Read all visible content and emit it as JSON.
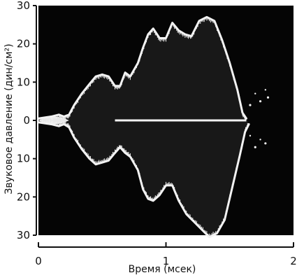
{
  "chart_data": {
    "type": "area",
    "title": "",
    "xlabel": "Время (мсек)",
    "ylabel": "Звуковое давление (дин/см²)",
    "xlim": [
      0,
      2
    ],
    "ylim": [
      -30,
      30
    ],
    "x_ticks": [
      "0",
      "1",
      "2"
    ],
    "y_ticks": [
      "30",
      "20",
      "10",
      "0",
      "10",
      "20",
      "30"
    ],
    "grid": false,
    "background_color": "#050505",
    "trace_color": "#f2f2f2",
    "series": [
      {
        "name": "",
        "upper": [
          [
            0.0,
            0.5
          ],
          [
            0.1,
            1.0
          ],
          [
            0.16,
            1.5
          ],
          [
            0.2,
            1.0
          ],
          [
            0.24,
            1.5
          ],
          [
            0.28,
            4.0
          ],
          [
            0.34,
            7.0
          ],
          [
            0.4,
            9.5
          ],
          [
            0.45,
            11.5
          ],
          [
            0.5,
            12.0
          ],
          [
            0.55,
            11.5
          ],
          [
            0.6,
            9.0
          ],
          [
            0.64,
            9.0
          ],
          [
            0.68,
            12.5
          ],
          [
            0.72,
            11.5
          ],
          [
            0.78,
            15.0
          ],
          [
            0.82,
            19.0
          ],
          [
            0.86,
            22.5
          ],
          [
            0.9,
            24.0
          ],
          [
            0.95,
            21.5
          ],
          [
            1.0,
            21.5
          ],
          [
            1.05,
            25.5
          ],
          [
            1.1,
            23.5
          ],
          [
            1.15,
            22.5
          ],
          [
            1.2,
            22.0
          ],
          [
            1.26,
            26.0
          ],
          [
            1.32,
            27.0
          ],
          [
            1.38,
            26.0
          ],
          [
            1.44,
            21.0
          ],
          [
            1.5,
            15.0
          ],
          [
            1.56,
            8.0
          ],
          [
            1.6,
            2.0
          ],
          [
            1.63,
            0.5
          ]
        ],
        "lower": [
          [
            0.0,
            -0.5
          ],
          [
            0.1,
            -1.0
          ],
          [
            0.16,
            -1.5
          ],
          [
            0.2,
            -1.0
          ],
          [
            0.24,
            -1.8
          ],
          [
            0.28,
            -4.5
          ],
          [
            0.34,
            -7.5
          ],
          [
            0.4,
            -10.0
          ],
          [
            0.45,
            -11.5
          ],
          [
            0.5,
            -11.0
          ],
          [
            0.55,
            -10.5
          ],
          [
            0.6,
            -8.5
          ],
          [
            0.64,
            -7.0
          ],
          [
            0.68,
            -8.5
          ],
          [
            0.72,
            -9.5
          ],
          [
            0.78,
            -13.0
          ],
          [
            0.82,
            -18.0
          ],
          [
            0.86,
            -20.5
          ],
          [
            0.9,
            -21.0
          ],
          [
            0.95,
            -19.5
          ],
          [
            1.0,
            -17.0
          ],
          [
            1.05,
            -17.0
          ],
          [
            1.1,
            -21.0
          ],
          [
            1.16,
            -24.5
          ],
          [
            1.22,
            -26.5
          ],
          [
            1.28,
            -28.5
          ],
          [
            1.34,
            -30.5
          ],
          [
            1.4,
            -29.5
          ],
          [
            1.46,
            -26.0
          ],
          [
            1.52,
            -17.5
          ],
          [
            1.58,
            -9.0
          ],
          [
            1.62,
            -3.0
          ],
          [
            1.65,
            -1.0
          ]
        ],
        "center_line": [
          [
            0.6,
            0
          ],
          [
            1.63,
            0
          ]
        ],
        "decay_fragments": [
          [
            1.66,
            4
          ],
          [
            1.7,
            7
          ],
          [
            1.74,
            5
          ],
          [
            1.78,
            8
          ],
          [
            1.8,
            6
          ],
          [
            1.66,
            -4
          ],
          [
            1.7,
            -7
          ],
          [
            1.74,
            -5
          ],
          [
            1.78,
            -6
          ]
        ]
      }
    ]
  }
}
